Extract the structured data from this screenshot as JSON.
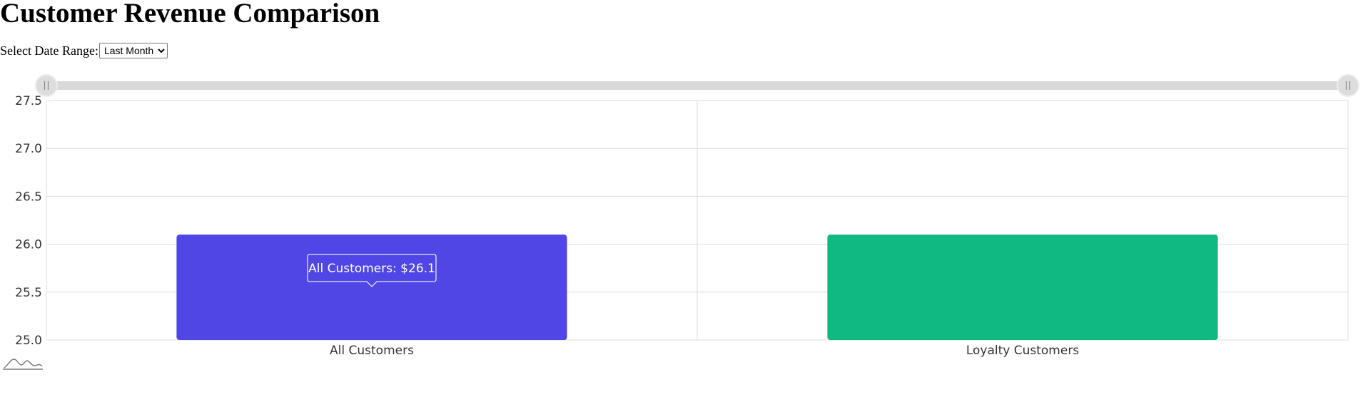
{
  "page": {
    "title": "Customer Revenue Comparison",
    "range_label": "Select Date Range:",
    "range_selected": "Last Month"
  },
  "colors": {
    "all_customers": "#4f46e5",
    "loyalty_customers": "#10b981",
    "grid": "#dddddd",
    "slider_track": "#d9d9d9"
  },
  "icons": {
    "slider_handle": "grip-lines-icon",
    "data_overview": "sparkline-icon"
  },
  "chart_data": {
    "type": "bar",
    "categories": [
      "All Customers",
      "Loyalty Customers"
    ],
    "values": [
      26.1,
      26.1
    ],
    "title": "",
    "xlabel": "",
    "ylabel": "",
    "ylim": [
      25.0,
      27.5
    ],
    "yticks": [
      "25.0",
      "25.5",
      "26.0",
      "26.5",
      "27.0",
      "27.5"
    ],
    "grid": true,
    "legend": "none",
    "tooltip": {
      "text": "All Customers: $26.1",
      "category": "All Customers"
    },
    "zoom_range": [
      0,
      1
    ]
  }
}
